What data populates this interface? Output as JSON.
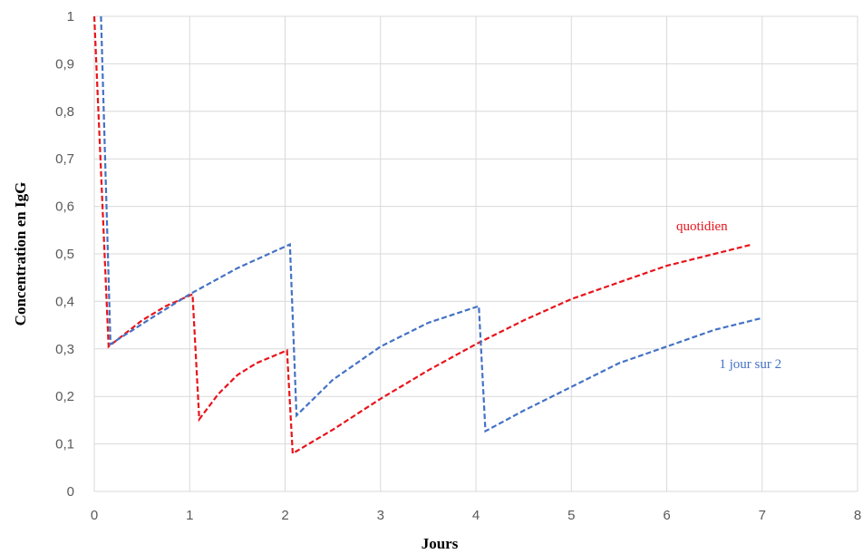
{
  "chart_data": {
    "type": "line",
    "title": "",
    "xlabel": "Jours",
    "ylabel": "Concentration en IgG",
    "xlim": [
      0,
      8
    ],
    "ylim": [
      0,
      1
    ],
    "x_ticks": [
      "0",
      "1",
      "2",
      "3",
      "4",
      "5",
      "6",
      "7",
      "8"
    ],
    "y_ticks": [
      "0",
      "0,1",
      "0,2",
      "0,3",
      "0,4",
      "0,5",
      "0,6",
      "0,7",
      "0,8",
      "0,9",
      "1"
    ],
    "grid": true,
    "legend": "none",
    "series": [
      {
        "name": "quotidien",
        "color": "#e8141b",
        "points": [
          [
            0.0,
            1.0
          ],
          [
            0.15,
            0.305
          ],
          [
            0.5,
            0.36
          ],
          [
            0.75,
            0.39
          ],
          [
            1.03,
            0.415
          ],
          [
            1.1,
            0.152
          ],
          [
            1.3,
            0.205
          ],
          [
            1.5,
            0.245
          ],
          [
            1.7,
            0.27
          ],
          [
            2.02,
            0.297
          ],
          [
            2.08,
            0.08
          ],
          [
            2.5,
            0.13
          ],
          [
            3.0,
            0.195
          ],
          [
            3.5,
            0.255
          ],
          [
            4.0,
            0.31
          ],
          [
            4.5,
            0.36
          ],
          [
            5.0,
            0.405
          ],
          [
            5.5,
            0.44
          ],
          [
            6.0,
            0.475
          ],
          [
            6.5,
            0.5
          ],
          [
            6.9,
            0.52
          ]
        ],
        "annotation": {
          "text": "quotidien",
          "x": 6.1,
          "y": 0.55
        }
      },
      {
        "name": "1 jour sur 2",
        "color": "#4472c4",
        "points": [
          [
            0.07,
            1.0
          ],
          [
            0.17,
            0.31
          ],
          [
            0.6,
            0.365
          ],
          [
            1.0,
            0.415
          ],
          [
            1.5,
            0.47
          ],
          [
            2.05,
            0.52
          ],
          [
            2.12,
            0.16
          ],
          [
            2.5,
            0.235
          ],
          [
            3.0,
            0.305
          ],
          [
            3.5,
            0.355
          ],
          [
            4.03,
            0.39
          ],
          [
            4.1,
            0.127
          ],
          [
            4.5,
            0.17
          ],
          [
            5.0,
            0.22
          ],
          [
            5.5,
            0.27
          ],
          [
            6.0,
            0.305
          ],
          [
            6.5,
            0.34
          ],
          [
            7.0,
            0.365
          ]
        ],
        "annotation": {
          "text": "1 jour sur 2",
          "x": 6.55,
          "y": 0.26
        }
      }
    ]
  }
}
